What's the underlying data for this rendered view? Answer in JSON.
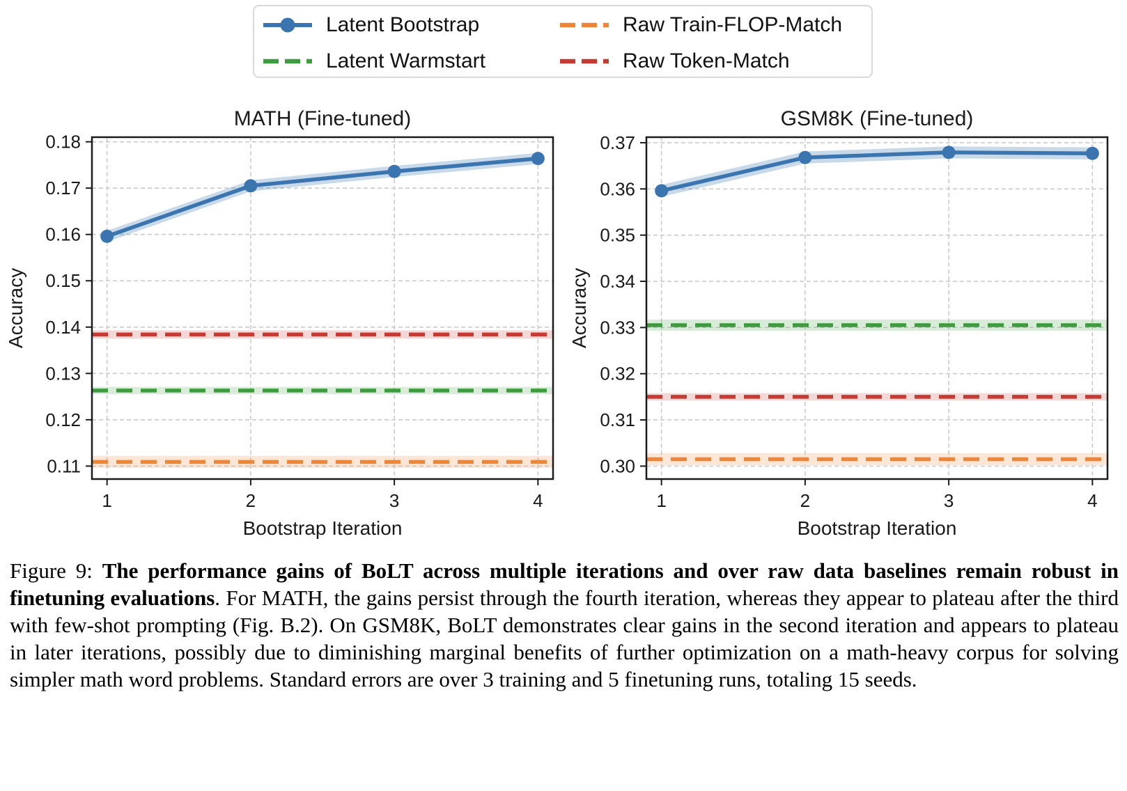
{
  "legend": {
    "items": [
      {
        "label": "Latent Bootstrap",
        "color": "#3B75AF",
        "style": "solid-marker"
      },
      {
        "label": "Latent Warmstart",
        "color": "#3F9B3F",
        "style": "dashed"
      },
      {
        "label": "Raw Train-FLOP-Match",
        "color": "#EF8636",
        "style": "dashed"
      },
      {
        "label": "Raw Token-Match",
        "color": "#C53A32",
        "style": "dashed"
      }
    ]
  },
  "chart_data": [
    {
      "type": "line",
      "title": "MATH (Fine-tuned)",
      "xlabel": "Bootstrap Iteration",
      "ylabel": "Accuracy",
      "x": [
        1,
        2,
        3,
        4
      ],
      "xtick_labels": [
        "1",
        "2",
        "3",
        "4"
      ],
      "yticks": [
        0.11,
        0.12,
        0.13,
        0.14,
        0.15,
        0.16,
        0.17,
        0.18
      ],
      "ytick_labels": [
        "0.11",
        "0.12",
        "0.13",
        "0.14",
        "0.15",
        "0.16",
        "0.17",
        "0.18"
      ],
      "xlim": [
        0.895,
        4.105
      ],
      "ylim": [
        0.1072,
        0.181
      ],
      "grid": true,
      "legend_position": "outside-top",
      "series": [
        {
          "name": "Latent Bootstrap",
          "color": "#3B75AF",
          "values": [
            0.1596,
            0.1705,
            0.1736,
            0.1764
          ],
          "stderr": 0.0012
        }
      ],
      "baselines": [
        {
          "name": "Raw Token-Match",
          "color": "#C53A32",
          "value": 0.1384,
          "stderr": 0.0009
        },
        {
          "name": "Latent Warmstart",
          "color": "#3F9B3F",
          "value": 0.1263,
          "stderr": 0.0008
        },
        {
          "name": "Raw Train-FLOP-Match",
          "color": "#EF8636",
          "value": 0.1109,
          "stderr": 0.0013
        }
      ]
    },
    {
      "type": "line",
      "title": "GSM8K (Fine-tuned)",
      "xlabel": "Bootstrap Iteration",
      "ylabel": "Accuracy",
      "x": [
        1,
        2,
        3,
        4
      ],
      "xtick_labels": [
        "1",
        "2",
        "3",
        "4"
      ],
      "yticks": [
        0.3,
        0.31,
        0.32,
        0.33,
        0.34,
        0.35,
        0.36,
        0.37
      ],
      "ytick_labels": [
        "0.30",
        "0.31",
        "0.32",
        "0.33",
        "0.34",
        "0.35",
        "0.36",
        "0.37"
      ],
      "xlim": [
        0.895,
        4.105
      ],
      "ylim": [
        0.2972,
        0.3712
      ],
      "grid": true,
      "legend_position": "outside-top",
      "series": [
        {
          "name": "Latent Bootstrap",
          "color": "#3B75AF",
          "values": [
            0.3596,
            0.3668,
            0.3679,
            0.3677
          ],
          "stderr": 0.0013
        }
      ],
      "baselines": [
        {
          "name": "Latent Warmstart",
          "color": "#3F9B3F",
          "value": 0.3305,
          "stderr": 0.0012
        },
        {
          "name": "Raw Token-Match",
          "color": "#C53A32",
          "value": 0.315,
          "stderr": 0.0008
        },
        {
          "name": "Raw Train-FLOP-Match",
          "color": "#EF8636",
          "value": 0.3015,
          "stderr": 0.0013
        }
      ]
    }
  ],
  "caption": {
    "prefix": "Figure 9: ",
    "bold": "The performance gains of BoLT across multiple iterations and over raw data baselines remain robust in finetuning evaluations",
    "rest": ". For MATH, the gains persist through the fourth iteration, whereas they appear to plateau after the third with few-shot prompting (Fig. B.2). On GSM8K, BoLT demonstrates clear gains in the second iteration and appears to plateau in later iterations, possibly due to diminishing marginal benefits of further optimization on a math-heavy corpus for solving simpler math word problems. Standard errors are over 3 training and 5 finetuning runs, totaling 15 seeds."
  }
}
